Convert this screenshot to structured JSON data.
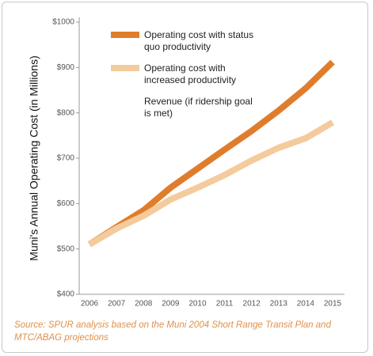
{
  "chart_data": {
    "type": "line",
    "y_label": "Muni's Annual Operating Cost (in Millions)",
    "source": "Source: SPUR analysis based on the Muni 2004 Short Range Transit Plan and MTC/ABAG projections",
    "categories": [
      "2006",
      "2007",
      "2008",
      "2009",
      "2010",
      "2011",
      "2012",
      "2013",
      "2014",
      "2015"
    ],
    "series": [
      {
        "name": "Operating cost with status quo productivity",
        "color": "#e07d2c",
        "values": [
          510,
          548,
          585,
          635,
          677,
          719,
          760,
          805,
          854,
          912
        ]
      },
      {
        "name": "Operating cost with increased productivity",
        "color": "#f3cb9c",
        "values": [
          510,
          545,
          573,
          609,
          635,
          663,
          695,
          723,
          744,
          779
        ]
      },
      {
        "name": "Revenue (if ridership goal is met)",
        "color": "#ffffff",
        "values": [
          null,
          null,
          null,
          null,
          null,
          null,
          null,
          null,
          null,
          null
        ]
      }
    ],
    "ylim": [
      400,
      1000
    ],
    "yticks": [
      {
        "value": 400,
        "label": "$400"
      },
      {
        "value": 500,
        "label": "$500"
      },
      {
        "value": 600,
        "label": "$600"
      },
      {
        "value": 700,
        "label": "$700"
      },
      {
        "value": 800,
        "label": "$800"
      },
      {
        "value": 900,
        "label": "$900"
      },
      {
        "value": 1000,
        "label": "$1000"
      }
    ]
  }
}
